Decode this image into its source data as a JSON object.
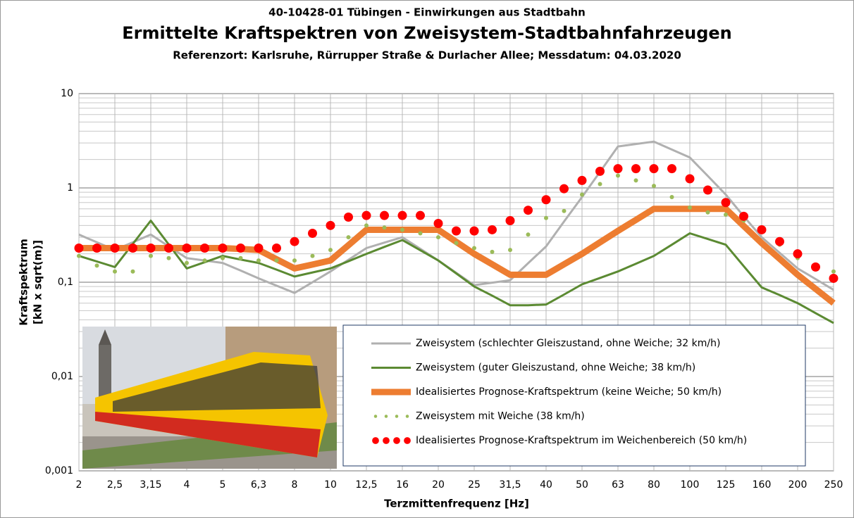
{
  "chart_data": {
    "type": "line",
    "title": "40-10428-01 Tübingen - Einwirkungen aus Stadtbahn",
    "subtitle": "Ermittelte Kraftspektren von Zweisystem-Stadtbahnfahrzeugen",
    "caption": "Referenzort: Karlsruhe, Rürrupper Straße & Durlacher Allee; Messdatum: 04.03.2020",
    "x_label": "Terzmittenfrequenz [Hz]",
    "y_label": [
      "Kraftspektrum",
      "[kN x sqrt(m)]"
    ],
    "categories": [
      "2",
      null,
      "2,5",
      null,
      "3,15",
      null,
      "4",
      null,
      "5",
      null,
      "6,3",
      null,
      "8",
      null,
      "10",
      null,
      "12,5",
      null,
      "16",
      null,
      "20",
      null,
      "25",
      null,
      "31,5",
      null,
      "40",
      null,
      "50",
      null,
      "63",
      null,
      "80",
      null,
      "100",
      null,
      "125",
      null,
      "160",
      null,
      "200",
      null,
      "250"
    ],
    "log_y": true,
    "grid": true,
    "minor_grid": true,
    "ylim": [
      0.001,
      10
    ],
    "yticks": [
      {
        "value": 0.001,
        "label": "0,001"
      },
      {
        "value": 0.01,
        "label": "0,01"
      },
      {
        "value": 0.1,
        "label": "0,1"
      },
      1,
      10
    ],
    "series": [
      {
        "name": "Zweisystem (schlechter Gleiszustand, ohne Weiche; 32 km/h)",
        "color": "#b0b0b0",
        "style": "line",
        "width": 3,
        "values": [
          0.32,
          0.265,
          0.22,
          0.265,
          0.32,
          0.24,
          0.18,
          0.17,
          0.16,
          0.133,
          0.11,
          0.092,
          0.077,
          0.1,
          0.13,
          0.173,
          0.23,
          0.263,
          0.3,
          0.226,
          0.17,
          0.126,
          0.093,
          0.099,
          0.105,
          0.159,
          0.24,
          0.44,
          0.8,
          1.48,
          2.75,
          2.92,
          3.1,
          2.55,
          2.1,
          1.34,
          0.85,
          0.5,
          0.3,
          0.205,
          0.14,
          0.108,
          0.083
        ]
      },
      {
        "name": "Zweisystem (guter Gleiszustand, ohne Weiche; 38 km/h)",
        "color": "#5b8a32",
        "style": "line",
        "width": 3,
        "values": [
          0.19,
          0.166,
          0.145,
          0.255,
          0.45,
          0.251,
          0.14,
          0.163,
          0.19,
          0.174,
          0.16,
          0.136,
          0.115,
          0.127,
          0.14,
          0.167,
          0.2,
          0.237,
          0.28,
          0.218,
          0.17,
          0.124,
          0.09,
          0.072,
          0.057,
          0.057,
          0.058,
          0.074,
          0.095,
          0.111,
          0.13,
          0.157,
          0.19,
          0.25,
          0.33,
          0.287,
          0.25,
          0.148,
          0.088,
          0.073,
          0.06,
          0.047,
          0.037
        ]
      },
      {
        "name": "Idealisiertes Prognose-Kraftspektrum (keine Weiche; 50 km/h)",
        "color": "#ed7d31",
        "style": "line",
        "width": 9,
        "values": [
          0.23,
          0.23,
          0.23,
          0.23,
          0.23,
          0.23,
          0.23,
          0.23,
          0.23,
          0.225,
          0.22,
          0.175,
          0.14,
          0.154,
          0.17,
          0.247,
          0.36,
          0.36,
          0.36,
          0.36,
          0.36,
          0.268,
          0.2,
          0.155,
          0.12,
          0.12,
          0.12,
          0.155,
          0.2,
          0.265,
          0.35,
          0.458,
          0.6,
          0.6,
          0.6,
          0.6,
          0.6,
          0.395,
          0.26,
          0.177,
          0.12,
          0.085,
          0.06
        ]
      },
      {
        "name": "Zweisystem mit Weiche (38 km/h)",
        "color": "#9bbb59",
        "style": "dots",
        "width": 6,
        "values": [
          0.19,
          0.15,
          0.13,
          0.13,
          0.19,
          0.18,
          0.16,
          0.17,
          0.18,
          0.18,
          0.17,
          0.17,
          0.17,
          0.19,
          0.22,
          0.3,
          0.4,
          0.38,
          0.36,
          0.33,
          0.3,
          0.26,
          0.23,
          0.21,
          0.22,
          0.32,
          0.48,
          0.57,
          0.85,
          1.1,
          1.35,
          1.2,
          1.05,
          0.8,
          0.62,
          0.55,
          0.52,
          0.45,
          0.35,
          0.25,
          0.18,
          0.14,
          0.13
        ]
      },
      {
        "name": "Idealisiertes Prognose-Kraftspektrum im Weichenbereich (50 km/h)",
        "color": "#ff0000",
        "style": "dots",
        "width": 13,
        "values": [
          0.23,
          0.23,
          0.23,
          0.23,
          0.23,
          0.23,
          0.23,
          0.23,
          0.23,
          0.23,
          0.23,
          0.23,
          0.27,
          0.33,
          0.4,
          0.49,
          0.51,
          0.51,
          0.51,
          0.51,
          0.42,
          0.35,
          0.35,
          0.36,
          0.45,
          0.58,
          0.75,
          0.98,
          1.2,
          1.5,
          1.6,
          1.6,
          1.6,
          1.6,
          1.25,
          0.95,
          0.7,
          0.5,
          0.36,
          0.27,
          0.2,
          0.145,
          0.11
        ]
      }
    ]
  }
}
